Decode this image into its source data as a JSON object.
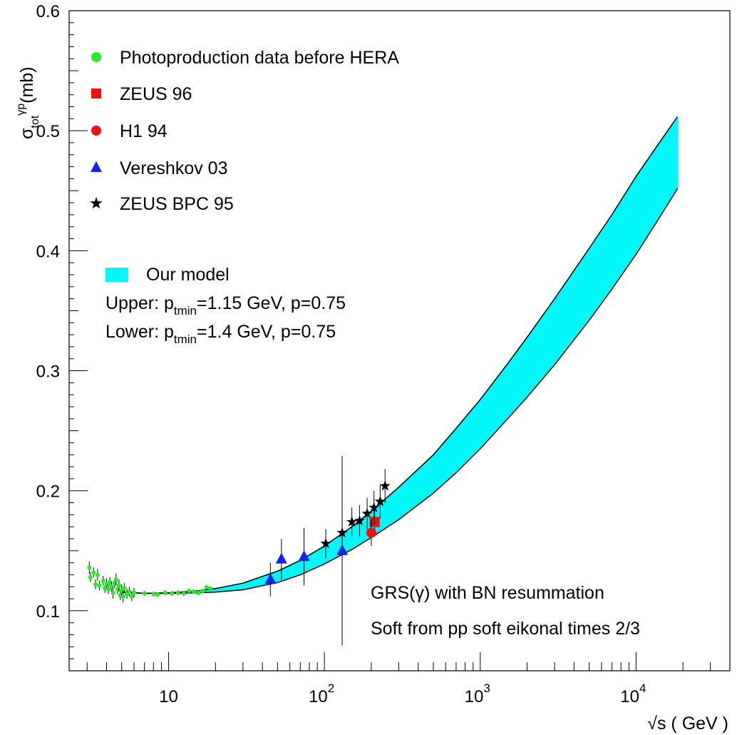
{
  "chart_data": {
    "type": "scatter",
    "title": "",
    "xlabel": "√s ( GeV )",
    "ylabel_main": "σ",
    "ylabel_sub": "tot",
    "ylabel_sup": "γp",
    "ylabel_unit": "(mb)",
    "xscale": "log",
    "xlim": [
      2.3,
      40000
    ],
    "ylim": [
      0.05,
      0.6
    ],
    "x_ticks": [
      {
        "value": 10,
        "base": "10",
        "exp": ""
      },
      {
        "value": 100,
        "base": "10",
        "exp": "2"
      },
      {
        "value": 1000,
        "base": "10",
        "exp": "3"
      },
      {
        "value": 10000,
        "base": "10",
        "exp": "4"
      }
    ],
    "y_ticks": [
      {
        "value": 0.1,
        "label": "0.1"
      },
      {
        "value": 0.2,
        "label": "0.2"
      },
      {
        "value": 0.3,
        "label": "0.3"
      },
      {
        "value": 0.4,
        "label": "0.4"
      },
      {
        "value": 0.5,
        "label": "0.5"
      },
      {
        "value": 0.6,
        "label": "0.6"
      }
    ],
    "legend": [
      {
        "label": "Photoproduction data before HERA",
        "marker": "circle",
        "color": "#22ee22"
      },
      {
        "label": "ZEUS 96",
        "marker": "square",
        "color": "#ee1111"
      },
      {
        "label": "H1 94",
        "marker": "circle",
        "color": "#ee1111"
      },
      {
        "label": "Vereshkov 03",
        "marker": "triangle",
        "color": "#1122ee"
      },
      {
        "label": "ZEUS BPC 95",
        "marker": "star",
        "color": "#000000"
      }
    ],
    "model_legend": {
      "label": "Our model",
      "color": "#00f8f8",
      "upper": {
        "prefix": "Upper: p",
        "sub": "tmin",
        "suffix": "=1.15 GeV, p=0.75"
      },
      "lower": {
        "prefix": "Lower: p",
        "sub": "tmin",
        "suffix": "=1.4 GeV, p=0.75"
      }
    },
    "annotations": [
      "GRS(γ) with BN resummation",
      "Soft from pp soft eikonal times 2/3"
    ],
    "band": {
      "upper": [
        [
          5,
          0.1155
        ],
        [
          7,
          0.1145
        ],
        [
          10,
          0.115
        ],
        [
          15,
          0.1165
        ],
        [
          20,
          0.1185
        ],
        [
          30,
          0.123
        ],
        [
          50,
          0.133
        ],
        [
          70,
          0.142
        ],
        [
          100,
          0.154
        ],
        [
          150,
          0.17
        ],
        [
          200,
          0.183
        ],
        [
          300,
          0.203
        ],
        [
          500,
          0.23
        ],
        [
          700,
          0.252
        ],
        [
          1000,
          0.276
        ],
        [
          1500,
          0.306
        ],
        [
          2000,
          0.328
        ],
        [
          3000,
          0.36
        ],
        [
          5000,
          0.402
        ],
        [
          7000,
          0.43
        ],
        [
          10000,
          0.462
        ],
        [
          15000,
          0.495
        ],
        [
          18500,
          0.512
        ]
      ],
      "lower": [
        [
          5,
          0.1155
        ],
        [
          7,
          0.1145
        ],
        [
          10,
          0.1145
        ],
        [
          15,
          0.115
        ],
        [
          20,
          0.1155
        ],
        [
          30,
          0.1175
        ],
        [
          50,
          0.1235
        ],
        [
          70,
          0.13
        ],
        [
          100,
          0.139
        ],
        [
          150,
          0.151
        ],
        [
          200,
          0.161
        ],
        [
          300,
          0.176
        ],
        [
          500,
          0.198
        ],
        [
          700,
          0.215
        ],
        [
          1000,
          0.235
        ],
        [
          1500,
          0.26
        ],
        [
          2000,
          0.278
        ],
        [
          3000,
          0.305
        ],
        [
          5000,
          0.342
        ],
        [
          7000,
          0.368
        ],
        [
          10000,
          0.397
        ],
        [
          15000,
          0.433
        ],
        [
          18500,
          0.452
        ]
      ]
    },
    "series": [
      {
        "name": "Photoproduction data before HERA",
        "marker": "circle",
        "color": "#22ee22",
        "points": [
          {
            "x": 3.1,
            "y": 0.136,
            "err": 0.005
          },
          {
            "x": 3.15,
            "y": 0.128,
            "err": 0.004
          },
          {
            "x": 3.3,
            "y": 0.132,
            "err": 0.004
          },
          {
            "x": 3.4,
            "y": 0.122,
            "err": 0.004
          },
          {
            "x": 3.5,
            "y": 0.13,
            "err": 0.005
          },
          {
            "x": 3.6,
            "y": 0.121,
            "err": 0.004
          },
          {
            "x": 3.8,
            "y": 0.125,
            "err": 0.004
          },
          {
            "x": 3.9,
            "y": 0.119,
            "err": 0.004
          },
          {
            "x": 4.0,
            "y": 0.122,
            "err": 0.005
          },
          {
            "x": 4.1,
            "y": 0.118,
            "err": 0.004
          },
          {
            "x": 4.2,
            "y": 0.124,
            "err": 0.004
          },
          {
            "x": 4.3,
            "y": 0.12,
            "err": 0.004
          },
          {
            "x": 4.4,
            "y": 0.115,
            "err": 0.005
          },
          {
            "x": 4.5,
            "y": 0.123,
            "err": 0.004
          },
          {
            "x": 4.6,
            "y": 0.126,
            "err": 0.005
          },
          {
            "x": 4.7,
            "y": 0.118,
            "err": 0.004
          },
          {
            "x": 4.8,
            "y": 0.121,
            "err": 0.005
          },
          {
            "x": 4.9,
            "y": 0.113,
            "err": 0.004
          },
          {
            "x": 5.0,
            "y": 0.117,
            "err": 0.005
          },
          {
            "x": 5.1,
            "y": 0.112,
            "err": 0.005
          },
          {
            "x": 5.2,
            "y": 0.119,
            "err": 0.004
          },
          {
            "x": 5.4,
            "y": 0.114,
            "err": 0.004
          },
          {
            "x": 5.6,
            "y": 0.116,
            "err": 0.004
          },
          {
            "x": 5.8,
            "y": 0.112,
            "err": 0.004
          },
          {
            "x": 6.0,
            "y": 0.115,
            "err": 0.004
          },
          {
            "x": 7.0,
            "y": 0.1145,
            "err": 0.002
          },
          {
            "x": 8.0,
            "y": 0.114,
            "err": 0.002
          },
          {
            "x": 8.5,
            "y": 0.1135,
            "err": 0.002
          },
          {
            "x": 9.5,
            "y": 0.115,
            "err": 0.002
          },
          {
            "x": 10.5,
            "y": 0.1145,
            "err": 0.002
          },
          {
            "x": 11.5,
            "y": 0.115,
            "err": 0.002
          },
          {
            "x": 12.5,
            "y": 0.1145,
            "err": 0.002
          },
          {
            "x": 13.5,
            "y": 0.1165,
            "err": 0.002
          },
          {
            "x": 14.5,
            "y": 0.116,
            "err": 0.002
          },
          {
            "x": 15.5,
            "y": 0.115,
            "err": 0.002
          },
          {
            "x": 16.5,
            "y": 0.1165,
            "err": 0.002
          },
          {
            "x": 17.5,
            "y": 0.1195,
            "err": 0.002
          },
          {
            "x": 18.5,
            "y": 0.1185,
            "err": 0.002
          }
        ]
      },
      {
        "name": "ZEUS 96",
        "marker": "square",
        "color": "#ee1111",
        "points": [
          {
            "x": 210,
            "y": 0.174,
            "err": 0.012
          }
        ]
      },
      {
        "name": "H1 94",
        "marker": "circle",
        "color": "#ee1111",
        "points": [
          {
            "x": 200,
            "y": 0.165,
            "err": 0.011
          }
        ]
      },
      {
        "name": "Vereshkov 03",
        "marker": "triangle",
        "color": "#1122ee",
        "points": [
          {
            "x": 45,
            "y": 0.126,
            "err": 0.014
          },
          {
            "x": 53,
            "y": 0.143,
            "err": 0.017
          },
          {
            "x": 74,
            "y": 0.145,
            "err": 0.024
          },
          {
            "x": 130,
            "y": 0.15,
            "err": 0.079
          }
        ]
      },
      {
        "name": "ZEUS BPC 95",
        "marker": "star",
        "color": "#000000",
        "points": [
          {
            "x": 102,
            "y": 0.156,
            "err": 0.012
          },
          {
            "x": 130,
            "y": 0.165,
            "err": 0.012
          },
          {
            "x": 150,
            "y": 0.174,
            "err": 0.012
          },
          {
            "x": 168,
            "y": 0.175,
            "err": 0.013
          },
          {
            "x": 188,
            "y": 0.181,
            "err": 0.013
          },
          {
            "x": 208,
            "y": 0.186,
            "err": 0.014
          },
          {
            "x": 228,
            "y": 0.191,
            "err": 0.014
          },
          {
            "x": 245,
            "y": 0.204,
            "err": 0.014
          }
        ]
      }
    ]
  }
}
